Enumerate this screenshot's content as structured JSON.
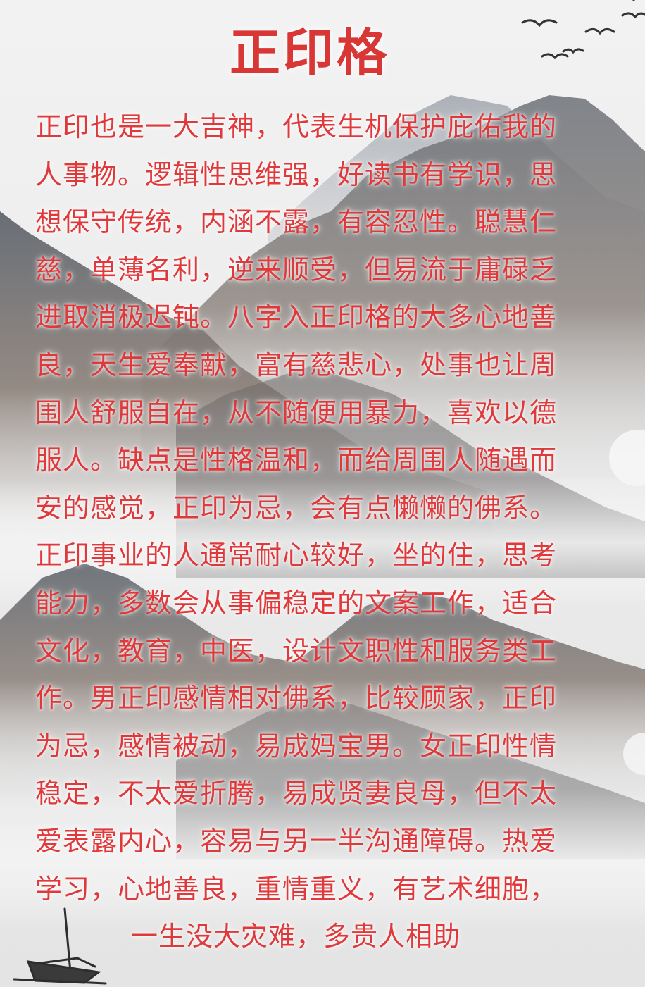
{
  "title": "正印格",
  "lines": [
    "正印也是一大吉神，代表生机保护庇佑我的",
    "人事物。逻辑性思维强，好读书有学识，思",
    "想保守传统，内涵不露，有容忍性。聪慧仁",
    "慈，单薄名利，逆来顺受，但易流于庸碌乏",
    "进取消极迟钝。八字入正印格的大多心地善",
    "良，天生爱奉献，富有慈悲心，处事也让周",
    "围人舒服自在，从不随便用暴力，喜欢以德",
    "服人。缺点是性格温和，而给周围人随遇而",
    "安的感觉，正印为忌，会有点懒懒的佛系。",
    "正印事业的人通常耐心较好，坐的住，思考",
    "能力，多数会从事偏稳定的文案工作，适合",
    "文化，教育，中医，设计文职性和服务类工",
    "作。男正印感情相对佛系，比较顾家，正印",
    "为忌，感情被动，易成妈宝男。女正印性情",
    "稳定，不太爱折腾，易成贤妻良母，但不太",
    "爱表露内心，容易与另一半沟通障碍。热爱",
    "学习，心地善良，重情重义，有艺术细胞，",
    "一生没大灾难，多贵人相助"
  ],
  "colors": {
    "text": "#e0393b",
    "title": "#d93636",
    "paper": "#ececec",
    "mountain": "#5f6670"
  }
}
